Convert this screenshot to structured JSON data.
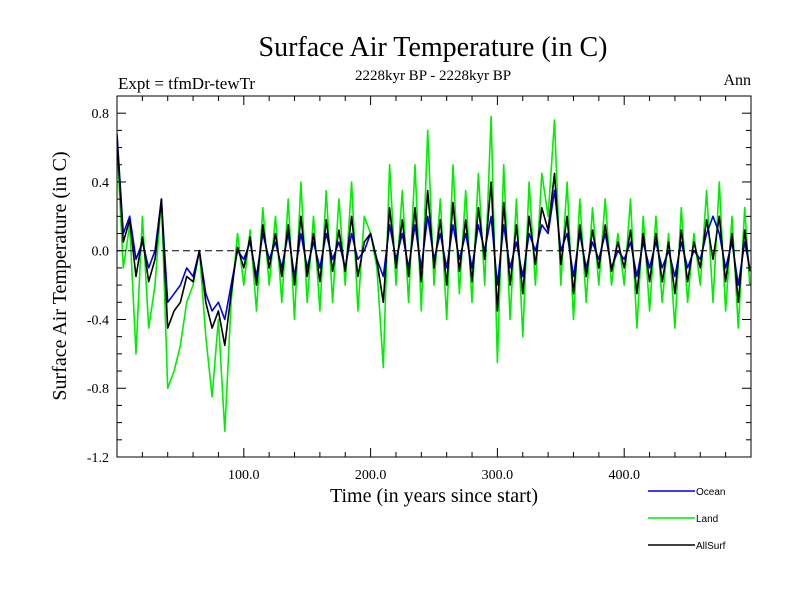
{
  "chart_data": {
    "type": "line",
    "title": "Surface Air Temperature (in C)",
    "subtitle": "2228kyr BP - 2228kyr BP",
    "left_label": "Expt = tfmDr-tewTr",
    "right_label": "Ann",
    "xlabel": "Time (in years since start)",
    "ylabel": "Surface Air Temperature (in C)",
    "xlim": [
      0,
      500
    ],
    "ylim": [
      -1.2,
      0.9
    ],
    "xticks": [
      100,
      200,
      300,
      400
    ],
    "xtick_labels": [
      "100.0",
      "200.0",
      "300.0",
      "400.0"
    ],
    "yticks": [
      -1.2,
      -0.8,
      -0.4,
      0.0,
      0.4,
      0.8
    ],
    "ytick_labels": [
      "-1.2",
      "-0.8",
      "-0.4",
      "0.0",
      "0.4",
      "0.8"
    ],
    "reference_line": {
      "y": 0.0,
      "style": "dashed"
    },
    "legend_position": "bottom-right",
    "series": [
      {
        "name": "Land",
        "color": "#00ee00",
        "x": [
          0,
          5,
          10,
          15,
          20,
          25,
          30,
          35,
          40,
          45,
          50,
          55,
          60,
          65,
          70,
          75,
          80,
          85,
          90,
          95,
          100,
          105,
          110,
          115,
          120,
          125,
          130,
          135,
          140,
          145,
          150,
          155,
          160,
          165,
          170,
          175,
          180,
          185,
          190,
          195,
          200,
          205,
          210,
          215,
          220,
          225,
          230,
          235,
          240,
          245,
          250,
          255,
          260,
          265,
          270,
          275,
          280,
          285,
          290,
          295,
          300,
          305,
          310,
          315,
          320,
          325,
          330,
          335,
          340,
          345,
          350,
          355,
          360,
          365,
          370,
          375,
          380,
          385,
          390,
          395,
          400,
          405,
          410,
          415,
          420,
          425,
          430,
          435,
          440,
          445,
          450,
          455,
          460,
          465,
          470,
          475,
          480,
          485,
          490,
          495,
          499
        ],
        "values": [
          0.62,
          -0.1,
          0.15,
          -0.6,
          0.2,
          -0.45,
          -0.2,
          0.3,
          -0.8,
          -0.7,
          -0.55,
          -0.3,
          -0.2,
          0.0,
          -0.5,
          -0.85,
          -0.4,
          -1.05,
          -0.3,
          0.1,
          -0.2,
          0.12,
          -0.35,
          0.25,
          -0.2,
          0.2,
          -0.3,
          0.3,
          -0.4,
          0.4,
          -0.3,
          0.2,
          -0.35,
          0.35,
          -0.3,
          0.3,
          -0.2,
          0.4,
          -0.35,
          0.2,
          0.1,
          -0.1,
          -0.68,
          0.5,
          -0.2,
          0.35,
          -0.3,
          0.5,
          -0.35,
          0.7,
          -0.2,
          0.3,
          -0.4,
          0.5,
          -0.25,
          0.35,
          -0.3,
          0.45,
          -0.2,
          0.78,
          -0.65,
          0.5,
          -0.4,
          0.3,
          -0.5,
          0.4,
          -0.2,
          0.45,
          0.2,
          0.76,
          -0.2,
          0.4,
          -0.4,
          0.3,
          -0.3,
          0.25,
          -0.2,
          0.3,
          -0.2,
          0.1,
          -0.2,
          0.3,
          -0.45,
          0.2,
          -0.35,
          0.2,
          -0.3,
          0.1,
          -0.45,
          0.25,
          -0.3,
          0.1,
          -0.2,
          0.35,
          -0.3,
          0.4,
          -0.35,
          0.2,
          -0.45,
          0.25,
          -0.2
        ]
      },
      {
        "name": "Ocean",
        "color": "#0000ee",
        "x": [
          0,
          5,
          10,
          15,
          20,
          25,
          30,
          35,
          40,
          45,
          50,
          55,
          60,
          65,
          70,
          75,
          80,
          85,
          90,
          95,
          100,
          105,
          110,
          115,
          120,
          125,
          130,
          135,
          140,
          145,
          150,
          155,
          160,
          165,
          170,
          175,
          180,
          185,
          190,
          195,
          200,
          205,
          210,
          215,
          220,
          225,
          230,
          235,
          240,
          245,
          250,
          255,
          260,
          265,
          270,
          275,
          280,
          285,
          290,
          295,
          300,
          305,
          310,
          315,
          320,
          325,
          330,
          335,
          340,
          345,
          350,
          355,
          360,
          365,
          370,
          375,
          380,
          385,
          390,
          395,
          400,
          405,
          410,
          415,
          420,
          425,
          430,
          435,
          440,
          445,
          450,
          455,
          460,
          465,
          470,
          475,
          480,
          485,
          490,
          495,
          499
        ],
        "values": [
          0.68,
          0.1,
          0.2,
          -0.05,
          0.05,
          -0.1,
          0.0,
          0.3,
          -0.3,
          -0.25,
          -0.2,
          -0.1,
          -0.15,
          0.0,
          -0.25,
          -0.35,
          -0.3,
          -0.4,
          -0.2,
          0.0,
          -0.05,
          0.05,
          -0.15,
          0.1,
          -0.05,
          0.05,
          -0.1,
          0.1,
          -0.15,
          0.1,
          -0.1,
          0.05,
          -0.1,
          0.1,
          -0.05,
          0.05,
          -0.1,
          0.1,
          -0.05,
          0.0,
          0.1,
          -0.05,
          -0.15,
          0.15,
          -0.05,
          0.1,
          -0.1,
          0.15,
          -0.1,
          0.2,
          -0.05,
          0.1,
          -0.1,
          0.15,
          -0.05,
          0.1,
          -0.1,
          0.15,
          0.0,
          0.2,
          -0.2,
          0.15,
          -0.1,
          0.05,
          -0.15,
          0.1,
          0.0,
          0.15,
          0.1,
          0.35,
          0.0,
          0.1,
          -0.15,
          0.1,
          -0.1,
          0.05,
          -0.05,
          0.1,
          -0.1,
          0.0,
          -0.05,
          0.05,
          -0.15,
          0.05,
          -0.1,
          0.05,
          -0.1,
          0.0,
          -0.15,
          0.05,
          -0.1,
          0.0,
          -0.05,
          0.1,
          0.2,
          0.1,
          -0.1,
          0.05,
          -0.2,
          0.05,
          -0.1
        ]
      },
      {
        "name": "AllSurf",
        "color": "#000000",
        "x": [
          0,
          5,
          10,
          15,
          20,
          25,
          30,
          35,
          40,
          45,
          50,
          55,
          60,
          65,
          70,
          75,
          80,
          85,
          90,
          95,
          100,
          105,
          110,
          115,
          120,
          125,
          130,
          135,
          140,
          145,
          150,
          155,
          160,
          165,
          170,
          175,
          180,
          185,
          190,
          195,
          200,
          205,
          210,
          215,
          220,
          225,
          230,
          235,
          240,
          245,
          250,
          255,
          260,
          265,
          270,
          275,
          280,
          285,
          290,
          295,
          300,
          305,
          310,
          315,
          320,
          325,
          330,
          335,
          340,
          345,
          350,
          355,
          360,
          365,
          370,
          375,
          380,
          385,
          390,
          395,
          400,
          405,
          410,
          415,
          420,
          425,
          430,
          435,
          440,
          445,
          450,
          455,
          460,
          465,
          470,
          475,
          480,
          485,
          490,
          495,
          499
        ],
        "values": [
          0.66,
          0.05,
          0.18,
          -0.15,
          0.08,
          -0.18,
          -0.05,
          0.3,
          -0.45,
          -0.35,
          -0.3,
          -0.15,
          -0.18,
          0.0,
          -0.3,
          -0.45,
          -0.35,
          -0.55,
          -0.25,
          0.02,
          -0.1,
          0.08,
          -0.2,
          0.15,
          -0.1,
          0.1,
          -0.15,
          0.15,
          -0.2,
          0.2,
          -0.15,
          0.1,
          -0.18,
          0.18,
          -0.12,
          0.12,
          -0.12,
          0.2,
          -0.15,
          0.05,
          0.1,
          -0.06,
          -0.3,
          0.25,
          -0.1,
          0.18,
          -0.15,
          0.25,
          -0.18,
          0.35,
          -0.1,
          0.18,
          -0.2,
          0.28,
          -0.12,
          0.18,
          -0.18,
          0.25,
          -0.05,
          0.4,
          -0.35,
          0.28,
          -0.2,
          0.15,
          -0.25,
          0.2,
          -0.08,
          0.25,
          0.12,
          0.45,
          -0.08,
          0.2,
          -0.25,
          0.15,
          -0.15,
          0.12,
          -0.1,
          0.15,
          -0.12,
          0.05,
          -0.1,
          0.12,
          -0.25,
          0.1,
          -0.18,
          0.1,
          -0.18,
          0.05,
          -0.25,
          0.12,
          -0.18,
          0.05,
          -0.1,
          0.18,
          -0.05,
          0.2,
          -0.18,
          0.1,
          -0.3,
          0.12,
          -0.12
        ]
      }
    ]
  }
}
